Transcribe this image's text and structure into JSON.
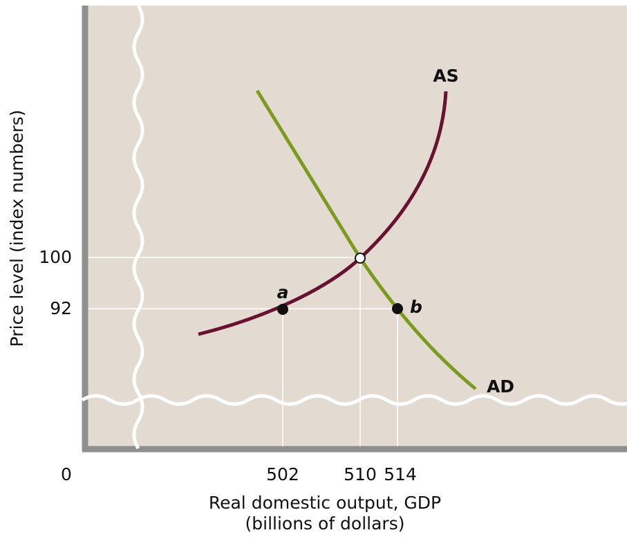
{
  "axes": {
    "y_title": "Price level (index numbers)",
    "x_title_line1": "Real domestic output, GDP",
    "x_title_line2": "(billions of dollars)",
    "origin": "0",
    "x_ticks": [
      "502",
      "510",
      "514"
    ],
    "y_ticks": [
      "100",
      "92"
    ]
  },
  "curves": {
    "supply": "AS",
    "demand": "AD"
  },
  "points": {
    "a": "a",
    "b": "b"
  }
}
